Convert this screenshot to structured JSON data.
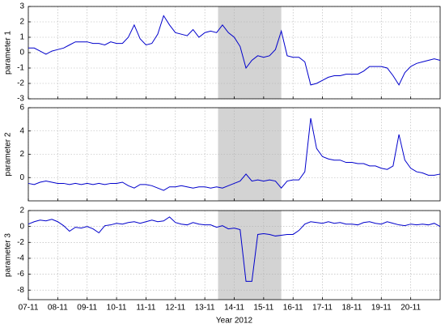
{
  "chart_data": [
    {
      "type": "line",
      "ylabel": "parameter 1",
      "grid": true,
      "shaded_span": [
        13.45,
        15.6
      ],
      "xlim": [
        7,
        21
      ],
      "ylim": [
        -3,
        3
      ],
      "yticks": [
        -3,
        -2,
        -1,
        0,
        1,
        2,
        3
      ],
      "x": [
        7,
        7.2,
        7.4,
        7.6,
        7.8,
        8,
        8.2,
        8.4,
        8.6,
        8.8,
        9,
        9.2,
        9.4,
        9.6,
        9.8,
        10,
        10.2,
        10.4,
        10.6,
        10.8,
        11,
        11.2,
        11.4,
        11.6,
        11.8,
        12,
        12.2,
        12.4,
        12.6,
        12.8,
        13,
        13.2,
        13.4,
        13.6,
        13.8,
        14,
        14.2,
        14.4,
        14.6,
        14.8,
        15,
        15.2,
        15.4,
        15.6,
        15.8,
        16,
        16.2,
        16.4,
        16.6,
        16.8,
        17,
        17.2,
        17.4,
        17.6,
        17.8,
        18,
        18.2,
        18.4,
        18.6,
        18.8,
        19,
        19.2,
        19.4,
        19.6,
        19.8,
        20,
        20.2,
        20.4,
        20.6,
        20.8,
        21
      ],
      "color": "#0000cc",
      "values": [
        0.3,
        0.3,
        0.1,
        -0.1,
        0.1,
        0.2,
        0.3,
        0.5,
        0.7,
        0.7,
        0.7,
        0.6,
        0.6,
        0.5,
        0.7,
        0.6,
        0.6,
        1.0,
        1.8,
        0.9,
        0.5,
        0.6,
        1.2,
        2.4,
        1.8,
        1.3,
        1.2,
        1.1,
        1.5,
        1.0,
        1.3,
        1.4,
        1.3,
        1.8,
        1.3,
        1.0,
        0.4,
        -1.0,
        -0.5,
        -0.2,
        -0.3,
        -0.2,
        0.2,
        1.4,
        -0.2,
        -0.3,
        -0.3,
        -0.6,
        -2.1,
        -2.0,
        -1.8,
        -1.6,
        -1.5,
        -1.5,
        -1.4,
        -1.4,
        -1.4,
        -1.2,
        -0.9,
        -0.9,
        -0.9,
        -1.0,
        -1.5,
        -2.1,
        -1.3,
        -0.9,
        -0.7,
        -0.6,
        -0.5,
        -0.4,
        -0.5
      ]
    },
    {
      "type": "line",
      "ylabel": "parameter 2",
      "grid": true,
      "shaded_span": [
        13.45,
        15.6
      ],
      "xlim": [
        7,
        21
      ],
      "ylim": [
        -2,
        6
      ],
      "yticks": [
        0,
        2,
        4,
        6
      ],
      "x": [
        7,
        7.2,
        7.4,
        7.6,
        7.8,
        8,
        8.2,
        8.4,
        8.6,
        8.8,
        9,
        9.2,
        9.4,
        9.6,
        9.8,
        10,
        10.2,
        10.4,
        10.6,
        10.8,
        11,
        11.2,
        11.4,
        11.6,
        11.8,
        12,
        12.2,
        12.4,
        12.6,
        12.8,
        13,
        13.2,
        13.4,
        13.6,
        13.8,
        14,
        14.2,
        14.4,
        14.6,
        14.8,
        15,
        15.2,
        15.4,
        15.6,
        15.8,
        16,
        16.2,
        16.4,
        16.6,
        16.8,
        17,
        17.2,
        17.4,
        17.6,
        17.8,
        18,
        18.2,
        18.4,
        18.6,
        18.8,
        19,
        19.2,
        19.4,
        19.6,
        19.8,
        20,
        20.2,
        20.4,
        20.6,
        20.8,
        21
      ],
      "color": "#0000cc",
      "values": [
        -0.5,
        -0.6,
        -0.4,
        -0.3,
        -0.4,
        -0.5,
        -0.5,
        -0.6,
        -0.5,
        -0.6,
        -0.5,
        -0.6,
        -0.5,
        -0.6,
        -0.5,
        -0.5,
        -0.4,
        -0.7,
        -0.9,
        -0.6,
        -0.6,
        -0.7,
        -0.9,
        -1.1,
        -0.8,
        -0.8,
        -0.7,
        -0.8,
        -0.9,
        -0.8,
        -0.8,
        -0.9,
        -0.8,
        -0.9,
        -0.7,
        -0.5,
        -0.3,
        0.3,
        -0.3,
        -0.2,
        -0.3,
        -0.2,
        -0.3,
        -0.9,
        -0.3,
        -0.2,
        -0.2,
        0.5,
        5.1,
        2.5,
        1.8,
        1.6,
        1.5,
        1.5,
        1.3,
        1.3,
        1.2,
        1.2,
        1.0,
        1.0,
        0.8,
        0.7,
        1.0,
        3.7,
        1.5,
        0.8,
        0.5,
        0.4,
        0.2,
        0.2,
        0.3
      ]
    },
    {
      "type": "line",
      "ylabel": "parameter 3",
      "xlabel": "Year 2012",
      "grid": true,
      "shaded_span": [
        13.45,
        15.6
      ],
      "xlim": [
        7,
        21
      ],
      "ylim": [
        -9.2,
        2
      ],
      "yticks": [
        -8,
        -6,
        -4,
        -2,
        0,
        2
      ],
      "xticks": [
        {
          "value": 7,
          "label": "07-11"
        },
        {
          "value": 8,
          "label": "08-11"
        },
        {
          "value": 9,
          "label": "09-11"
        },
        {
          "value": 10,
          "label": "10-11"
        },
        {
          "value": 11,
          "label": "11-11"
        },
        {
          "value": 12,
          "label": "12-11"
        },
        {
          "value": 13,
          "label": "13-11"
        },
        {
          "value": 14,
          "label": "14-11"
        },
        {
          "value": 15,
          "label": "15-11"
        },
        {
          "value": 16,
          "label": "16-11"
        },
        {
          "value": 17,
          "label": "17-11"
        },
        {
          "value": 18,
          "label": "18-11"
        },
        {
          "value": 19,
          "label": "19-11"
        },
        {
          "value": 20,
          "label": "20-11"
        }
      ],
      "x": [
        7,
        7.2,
        7.4,
        7.6,
        7.8,
        8,
        8.2,
        8.4,
        8.6,
        8.8,
        9,
        9.2,
        9.4,
        9.6,
        9.8,
        10,
        10.2,
        10.4,
        10.6,
        10.8,
        11,
        11.2,
        11.4,
        11.6,
        11.8,
        12,
        12.2,
        12.4,
        12.6,
        12.8,
        13,
        13.2,
        13.4,
        13.6,
        13.8,
        14,
        14.2,
        14.4,
        14.6,
        14.8,
        15,
        15.2,
        15.4,
        15.6,
        15.8,
        16,
        16.2,
        16.4,
        16.6,
        16.8,
        17,
        17.2,
        17.4,
        17.6,
        17.8,
        18,
        18.2,
        18.4,
        18.6,
        18.8,
        19,
        19.2,
        19.4,
        19.6,
        19.8,
        20,
        20.2,
        20.4,
        20.6,
        20.8,
        21
      ],
      "color": "#0000cc",
      "values": [
        0.3,
        0.6,
        0.8,
        0.7,
        0.9,
        0.6,
        0.1,
        -0.6,
        -0.1,
        -0.2,
        0.0,
        -0.3,
        -0.8,
        0.1,
        0.2,
        0.4,
        0.3,
        0.5,
        0.6,
        0.4,
        0.6,
        0.8,
        0.6,
        0.7,
        1.2,
        0.5,
        0.3,
        0.2,
        0.5,
        0.3,
        0.2,
        0.2,
        -0.1,
        0.1,
        -0.3,
        -0.2,
        -0.4,
        -6.9,
        -6.9,
        -1.0,
        -0.9,
        -1.0,
        -1.2,
        -1.1,
        -1.0,
        -1.0,
        -0.5,
        0.3,
        0.6,
        0.5,
        0.4,
        0.6,
        0.4,
        0.5,
        0.3,
        0.3,
        0.2,
        0.5,
        0.6,
        0.4,
        0.3,
        0.6,
        0.4,
        0.2,
        0.1,
        0.3,
        0.2,
        0.3,
        0.2,
        0.4,
        0.0
      ]
    }
  ]
}
